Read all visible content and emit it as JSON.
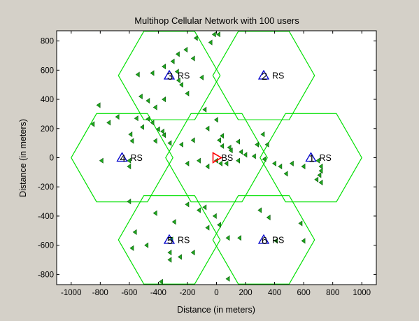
{
  "window": {
    "background": "#d4d0c8",
    "axes_background": "#ffffff"
  },
  "chart_data": {
    "type": "scatter",
    "title": "Multihop Cellular Network with 100 users",
    "xlabel": "Distance (in meters)",
    "ylabel": "Distance (in meters)",
    "xlim": [
      -1100,
      1100
    ],
    "ylim": [
      -870,
      870
    ],
    "xticks": [
      -1000,
      -800,
      -600,
      -400,
      -200,
      0,
      200,
      400,
      600,
      800,
      1000
    ],
    "yticks": [
      -800,
      -600,
      -400,
      -200,
      0,
      200,
      400,
      600,
      800
    ],
    "grid": false,
    "legend": "none",
    "colors": {
      "cell_boundary": "#00e000",
      "users": "#1ea81e",
      "relay_station": "#0000cc",
      "base_station": "#ff0000",
      "label": "#000000"
    },
    "cells": [
      {
        "center": [
          0,
          0
        ],
        "radius": 350
      },
      {
        "center": [
          -650,
          0
        ],
        "radius": 350
      },
      {
        "center": [
          650,
          0
        ],
        "radius": 350
      },
      {
        "center": [
          -325,
          563
        ],
        "radius": 350
      },
      {
        "center": [
          325,
          563
        ],
        "radius": 350
      },
      {
        "center": [
          -325,
          -563
        ],
        "radius": 350
      },
      {
        "center": [
          325,
          -563
        ],
        "radius": 350
      }
    ],
    "base_station": {
      "x": 0,
      "y": 0,
      "label": "BS",
      "marker": "triangle-right"
    },
    "relay_stations": [
      {
        "x": 325,
        "y": 563,
        "id": "2",
        "label": "RS"
      },
      {
        "x": -325,
        "y": 563,
        "id": "3",
        "label": "RS"
      },
      {
        "x": -650,
        "y": 0,
        "id": "4",
        "label": "RS"
      },
      {
        "x": 650,
        "y": 0,
        "id": "1",
        "label": "RS"
      },
      {
        "x": -325,
        "y": -563,
        "id": "5",
        "label": "RS"
      },
      {
        "x": 325,
        "y": -563,
        "id": "6",
        "label": "RS"
      }
    ],
    "users": {
      "name": "users",
      "count": 100,
      "marker": "triangle-left",
      "points": [
        [
          -15,
          845
        ],
        [
          15,
          845
        ],
        [
          -270,
          590
        ],
        [
          -360,
          625
        ],
        [
          -140,
          820
        ],
        [
          -40,
          790
        ],
        [
          -210,
          740
        ],
        [
          -265,
          710
        ],
        [
          -160,
          680
        ],
        [
          -300,
          660
        ],
        [
          -440,
          580
        ],
        [
          -540,
          570
        ],
        [
          -240,
          500
        ],
        [
          -260,
          530
        ],
        [
          -100,
          550
        ],
        [
          -360,
          400
        ],
        [
          -200,
          440
        ],
        [
          -520,
          420
        ],
        [
          -470,
          390
        ],
        [
          -420,
          345
        ],
        [
          -550,
          270
        ],
        [
          -470,
          265
        ],
        [
          -680,
          280
        ],
        [
          -740,
          240
        ],
        [
          -810,
          360
        ],
        [
          -850,
          230
        ],
        [
          -590,
          160
        ],
        [
          -580,
          115
        ],
        [
          -510,
          210
        ],
        [
          -440,
          240
        ],
        [
          -400,
          195
        ],
        [
          -370,
          180
        ],
        [
          -360,
          155
        ],
        [
          -420,
          115
        ],
        [
          -320,
          100
        ],
        [
          -240,
          90
        ],
        [
          -160,
          120
        ],
        [
          -80,
          330
        ],
        [
          -60,
          200
        ],
        [
          0,
          260
        ],
        [
          40,
          150
        ],
        [
          20,
          120
        ],
        [
          40,
          80
        ],
        [
          90,
          70
        ],
        [
          100,
          50
        ],
        [
          150,
          110
        ],
        [
          170,
          40
        ],
        [
          200,
          20
        ],
        [
          350,
          90
        ],
        [
          280,
          90
        ],
        [
          320,
          160
        ],
        [
          -790,
          -20
        ],
        [
          -600,
          -20
        ],
        [
          -600,
          -60
        ],
        [
          -200,
          -40
        ],
        [
          -120,
          -20
        ],
        [
          -60,
          -60
        ],
        [
          0,
          -20
        ],
        [
          30,
          -40
        ],
        [
          70,
          -40
        ],
        [
          150,
          -20
        ],
        [
          260,
          10
        ],
        [
          330,
          -10
        ],
        [
          400,
          -40
        ],
        [
          440,
          -60
        ],
        [
          480,
          -110
        ],
        [
          520,
          -40
        ],
        [
          600,
          -60
        ],
        [
          700,
          -20
        ],
        [
          720,
          -60
        ],
        [
          720,
          -90
        ],
        [
          710,
          -120
        ],
        [
          690,
          -150
        ],
        [
          720,
          -170
        ],
        [
          -600,
          -300
        ],
        [
          -420,
          -380
        ],
        [
          -290,
          -440
        ],
        [
          -200,
          -320
        ],
        [
          -120,
          -360
        ],
        [
          -80,
          -340
        ],
        [
          -10,
          -400
        ],
        [
          20,
          -460
        ],
        [
          -60,
          -480
        ],
        [
          -560,
          -510
        ],
        [
          -580,
          -620
        ],
        [
          -480,
          -600
        ],
        [
          -310,
          -560
        ],
        [
          -320,
          -650
        ],
        [
          -250,
          -680
        ],
        [
          -320,
          -700
        ],
        [
          -380,
          -850
        ],
        [
          -160,
          -650
        ],
        [
          80,
          -550
        ],
        [
          160,
          -550
        ],
        [
          300,
          -360
        ],
        [
          360,
          -410
        ],
        [
          410,
          -570
        ],
        [
          580,
          -450
        ],
        [
          600,
          -570
        ],
        [
          80,
          -830
        ]
      ]
    }
  }
}
